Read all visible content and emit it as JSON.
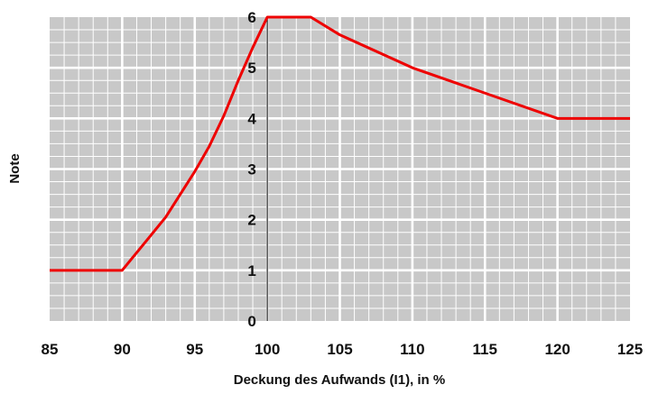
{
  "chart_data": {
    "type": "line",
    "xlabel": "Deckung des Aufwands (I1), in %",
    "ylabel": "Note",
    "xlim": [
      85,
      125
    ],
    "ylim": [
      0,
      6
    ],
    "x_ticks": [
      "85",
      "90",
      "95",
      "100",
      "105",
      "110",
      "115",
      "120",
      "125"
    ],
    "y_ticks": [
      "0",
      "1",
      "2",
      "3",
      "4",
      "5",
      "6"
    ],
    "grid": true,
    "series": [
      {
        "color": "#ee0000",
        "points": [
          [
            85,
            1
          ],
          [
            90,
            1
          ],
          [
            91,
            1.35
          ],
          [
            92,
            1.7
          ],
          [
            93,
            2.05
          ],
          [
            94,
            2.5
          ],
          [
            95,
            2.95
          ],
          [
            96,
            3.45
          ],
          [
            97,
            4.05
          ],
          [
            98,
            4.75
          ],
          [
            99,
            5.4
          ],
          [
            100,
            6
          ],
          [
            103,
            6
          ],
          [
            105,
            5.65
          ],
          [
            110,
            5
          ],
          [
            115,
            4.5
          ],
          [
            120,
            4
          ],
          [
            125,
            4
          ]
        ]
      }
    ],
    "vertical_line_at": 100,
    "colors": {
      "grid_background": "#c8c8c8",
      "grid_line": "#ffffff",
      "axis_line": "#222222"
    }
  }
}
